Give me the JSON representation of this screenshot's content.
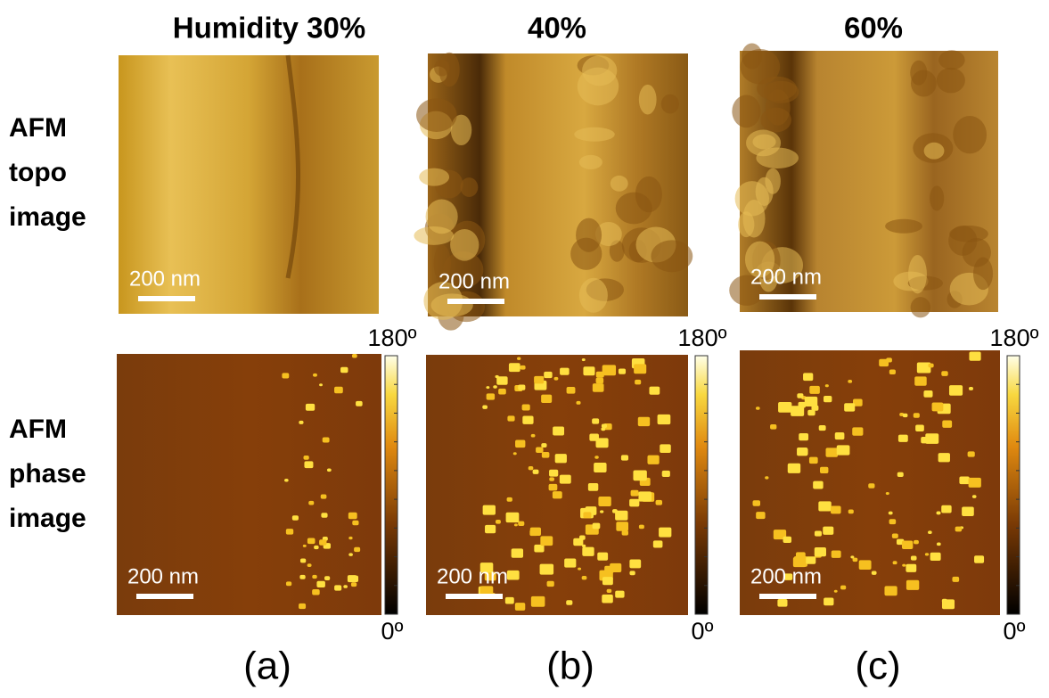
{
  "columns": [
    {
      "title": "Humidity 30%",
      "label": "(a)",
      "topo_scale_bar": "200 nm",
      "phase_scale_bar": "200 nm",
      "colorbar": {
        "max": "180º",
        "min": "0º"
      }
    },
    {
      "title": "40%",
      "label": "(b)",
      "topo_scale_bar": "200 nm",
      "phase_scale_bar": "200 nm",
      "colorbar": {
        "max": "180º",
        "min": "0º"
      }
    },
    {
      "title": "60%",
      "label": "(c)",
      "topo_scale_bar": "200 nm",
      "phase_scale_bar": "200 nm",
      "colorbar": {
        "max": "180º",
        "min": "0º"
      }
    }
  ],
  "rows": [
    {
      "label": [
        "AFM",
        "topo",
        "image"
      ]
    },
    {
      "label": [
        "AFM",
        "phase",
        "image"
      ]
    }
  ]
}
